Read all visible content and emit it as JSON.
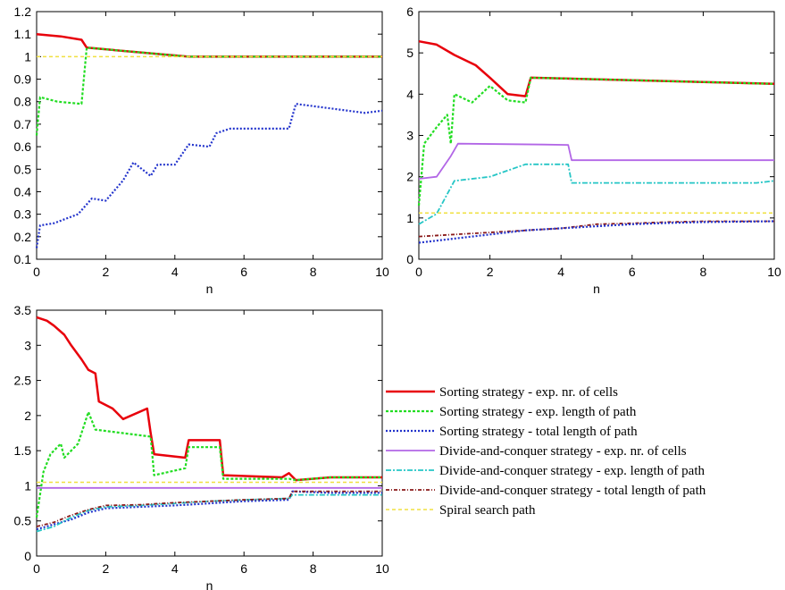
{
  "chart_data": [
    {
      "type": "line",
      "xlabel": "n",
      "ylabel": "",
      "xlim": [
        0,
        10
      ],
      "ylim": [
        0.1,
        1.2
      ],
      "xticks": [
        "0",
        "2",
        "4",
        "6",
        "8",
        "10"
      ],
      "yticks": [
        "0.1",
        "0.2",
        "0.3",
        "0.4",
        "0.5",
        "0.6",
        "0.7",
        "0.8",
        "0.9",
        "1",
        "1.1",
        "1.2"
      ],
      "series": [
        {
          "key": "sort_cells",
          "x": [
            0,
            0.7,
            1.3,
            1.45,
            4.4,
            10
          ],
          "y": [
            1.1,
            1.09,
            1.075,
            1.04,
            1.0,
            1.0
          ]
        },
        {
          "key": "sort_len",
          "x": [
            0,
            0.1,
            0.6,
            1.3,
            1.45,
            4.4,
            10
          ],
          "y": [
            0.65,
            0.82,
            0.8,
            0.79,
            1.04,
            1.0,
            1.0
          ]
        },
        {
          "key": "sort_total",
          "x": [
            0,
            0.1,
            0.5,
            1.2,
            1.6,
            2.0,
            2.5,
            2.8,
            3.3,
            3.5,
            4.0,
            4.4,
            5.0,
            5.2,
            5.6,
            6.5,
            7.3,
            7.5,
            9.5,
            10
          ],
          "y": [
            0.15,
            0.25,
            0.26,
            0.3,
            0.37,
            0.36,
            0.45,
            0.53,
            0.47,
            0.52,
            0.52,
            0.61,
            0.6,
            0.66,
            0.68,
            0.68,
            0.68,
            0.79,
            0.75,
            0.76
          ]
        },
        {
          "key": "spiral",
          "x": [
            0,
            10
          ],
          "y": [
            1.0,
            1.0
          ]
        }
      ]
    },
    {
      "type": "line",
      "xlabel": "n",
      "ylabel": "",
      "xlim": [
        0,
        10
      ],
      "ylim": [
        0,
        6
      ],
      "xticks": [
        "0",
        "2",
        "4",
        "6",
        "8",
        "10"
      ],
      "yticks": [
        "0",
        "1",
        "2",
        "3",
        "4",
        "5",
        "6"
      ],
      "series": [
        {
          "key": "sort_cells",
          "x": [
            0,
            0.5,
            1.0,
            1.6,
            2.0,
            2.5,
            3.0,
            3.15,
            5.5,
            10
          ],
          "y": [
            5.28,
            5.2,
            4.95,
            4.7,
            4.4,
            4.0,
            3.95,
            4.4,
            4.35,
            4.25
          ]
        },
        {
          "key": "sort_len",
          "x": [
            0,
            0.15,
            0.5,
            0.8,
            0.9,
            1.0,
            1.5,
            2.0,
            2.5,
            3.0,
            3.15,
            5.5,
            10
          ],
          "y": [
            1.3,
            2.8,
            3.2,
            3.5,
            2.8,
            4.0,
            3.8,
            4.2,
            3.85,
            3.8,
            4.4,
            4.35,
            4.25
          ]
        },
        {
          "key": "dc_cells",
          "x": [
            0,
            0.5,
            0.9,
            1.1,
            3.5,
            4.2,
            4.3,
            10
          ],
          "y": [
            1.95,
            2.0,
            2.5,
            2.8,
            2.78,
            2.77,
            2.4,
            2.4
          ]
        },
        {
          "key": "dc_len",
          "x": [
            0,
            0.5,
            1.0,
            2.0,
            3.0,
            4.2,
            4.3,
            9.5,
            10
          ],
          "y": [
            0.85,
            1.1,
            1.9,
            2.0,
            2.3,
            2.3,
            1.85,
            1.85,
            1.9
          ]
        },
        {
          "key": "dc_total",
          "x": [
            0,
            1,
            2,
            3,
            4,
            5,
            6,
            7,
            8,
            10
          ],
          "y": [
            0.55,
            0.6,
            0.65,
            0.7,
            0.75,
            0.85,
            0.87,
            0.9,
            0.92,
            0.92
          ]
        },
        {
          "key": "sort_total",
          "x": [
            0,
            1,
            2,
            3,
            4,
            5,
            6,
            7,
            8,
            10
          ],
          "y": [
            0.4,
            0.5,
            0.6,
            0.7,
            0.75,
            0.8,
            0.85,
            0.88,
            0.9,
            0.92
          ]
        },
        {
          "key": "spiral",
          "x": [
            0,
            10
          ],
          "y": [
            1.12,
            1.12
          ]
        }
      ]
    },
    {
      "type": "line",
      "xlabel": "n",
      "ylabel": "",
      "xlim": [
        0,
        10
      ],
      "ylim": [
        0,
        3.5
      ],
      "xticks": [
        "0",
        "2",
        "4",
        "6",
        "8",
        "10"
      ],
      "yticks": [
        "0",
        "0.5",
        "1",
        "1.5",
        "2",
        "2.5",
        "3",
        "3.5"
      ],
      "series": [
        {
          "key": "sort_cells",
          "x": [
            0,
            0.3,
            0.5,
            0.8,
            1.0,
            1.3,
            1.5,
            1.7,
            1.8,
            2.2,
            2.5,
            3.2,
            3.3,
            3.4,
            4.3,
            4.4,
            5.3,
            5.4,
            7.1,
            7.3,
            7.5,
            8.5,
            10
          ],
          "y": [
            3.4,
            3.35,
            3.28,
            3.15,
            3.0,
            2.8,
            2.65,
            2.6,
            2.2,
            2.1,
            1.95,
            2.1,
            1.75,
            1.45,
            1.4,
            1.65,
            1.65,
            1.15,
            1.12,
            1.18,
            1.08,
            1.12,
            1.12
          ]
        },
        {
          "key": "sort_len",
          "x": [
            0,
            0.2,
            0.4,
            0.7,
            0.8,
            1.2,
            1.5,
            1.7,
            2.5,
            3.3,
            3.4,
            4.3,
            4.4,
            5.3,
            5.4,
            7.3,
            7.5,
            8.5,
            10
          ],
          "y": [
            0.55,
            1.2,
            1.45,
            1.6,
            1.4,
            1.6,
            2.05,
            1.8,
            1.75,
            1.7,
            1.15,
            1.25,
            1.55,
            1.55,
            1.1,
            1.1,
            1.08,
            1.12,
            1.12
          ]
        },
        {
          "key": "sort_total",
          "x": [
            0,
            0.5,
            1.0,
            1.5,
            2.0,
            3.0,
            4.0,
            5.0,
            6.0,
            7.3,
            7.4,
            8.5,
            10
          ],
          "y": [
            0.38,
            0.45,
            0.52,
            0.62,
            0.68,
            0.7,
            0.72,
            0.75,
            0.78,
            0.8,
            0.92,
            0.9,
            0.9
          ]
        },
        {
          "key": "dc_cells",
          "x": [
            0,
            10
          ],
          "y": [
            0.97,
            0.97
          ]
        },
        {
          "key": "dc_len",
          "x": [
            0,
            0.5,
            1.0,
            1.5,
            2.0,
            3.0,
            4.0,
            5.0,
            6.0,
            7.3,
            7.4,
            10
          ],
          "y": [
            0.35,
            0.42,
            0.55,
            0.65,
            0.7,
            0.72,
            0.75,
            0.78,
            0.8,
            0.82,
            0.87,
            0.87
          ]
        },
        {
          "key": "dc_total",
          "x": [
            0,
            0.5,
            1.0,
            1.5,
            2.0,
            3.0,
            4.0,
            5.0,
            6.0,
            7.3,
            7.4,
            10
          ],
          "y": [
            0.42,
            0.48,
            0.58,
            0.66,
            0.72,
            0.73,
            0.76,
            0.78,
            0.8,
            0.82,
            0.92,
            0.92
          ]
        },
        {
          "key": "spiral",
          "x": [
            0,
            10
          ],
          "y": [
            1.05,
            1.05
          ]
        }
      ]
    }
  ],
  "legend": {
    "placement": "bottom-right",
    "entries": [
      {
        "key": "sort_cells",
        "label": "Sorting strategy - exp. nr. of cells",
        "color": "#e8000b",
        "dash": "",
        "width": 2.5
      },
      {
        "key": "sort_len",
        "label": "Sorting strategy - exp. length of path",
        "color": "#22dd22",
        "dash": "3,2",
        "width": 2.2
      },
      {
        "key": "sort_total",
        "label": "Sorting strategy - total length of path",
        "color": "#2233cc",
        "dash": "2,2",
        "width": 2.2
      },
      {
        "key": "dc_cells",
        "label": "Divide-and-conquer strategy - exp. nr. of cells",
        "color": "#b266e6",
        "dash": "",
        "width": 1.8
      },
      {
        "key": "dc_len",
        "label": "Divide-and-conquer strategy - exp. length of path",
        "color": "#26c6c6",
        "dash": "6,2,2,2",
        "width": 1.8
      },
      {
        "key": "dc_total",
        "label": "Divide-and-conquer strategy - total length of path",
        "color": "#8a1a1a",
        "dash": "4,2,1,2",
        "width": 1.8
      },
      {
        "key": "spiral",
        "label": "Spiral search path",
        "color": "#f0e040",
        "dash": "4,3",
        "width": 1.5
      }
    ]
  }
}
